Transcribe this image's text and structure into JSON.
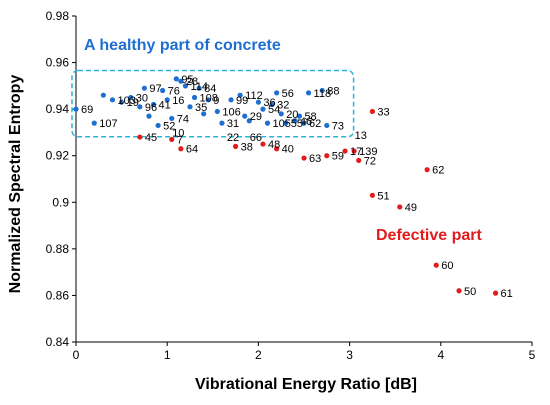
{
  "chart_data": {
    "type": "scatter",
    "xlabel": "Vibrational Energy Ratio [dB]",
    "ylabel": "Normalized Spectral Entropy",
    "xlim": [
      0,
      5
    ],
    "ylim": [
      0.84,
      0.98
    ],
    "xticks": [
      "0",
      "1",
      "2",
      "3",
      "4",
      "5"
    ],
    "yticks": [
      "0.84",
      "0.86",
      "0.88",
      "0.9",
      "0.92",
      "0.94",
      "0.96",
      "0.98"
    ],
    "grid": false,
    "annotations": {
      "healthy": "A healthy part of concrete",
      "defective": "Defective part"
    },
    "colors": {
      "healthy": "#1f6fd1",
      "defective": "#e31b1b",
      "box": "#2cb5d9"
    },
    "healthy_region": {
      "x": [
        0.0,
        3.0
      ],
      "y": [
        0.929,
        0.954
      ]
    },
    "series": [
      {
        "color": "#1f6fd1",
        "points": [
          {
            "x": 0.0,
            "y": 0.94,
            "label": "69"
          },
          {
            "x": 0.2,
            "y": 0.934,
            "label": "107"
          },
          {
            "x": 0.3,
            "y": 0.946,
            "label": ""
          },
          {
            "x": 0.4,
            "y": 0.944,
            "label": "103"
          },
          {
            "x": 0.5,
            "y": 0.943,
            "label": "19"
          },
          {
            "x": 0.6,
            "y": 0.945,
            "label": "30"
          },
          {
            "x": 0.7,
            "y": 0.941,
            "label": "96"
          },
          {
            "x": 0.75,
            "y": 0.949,
            "label": "97"
          },
          {
            "x": 0.8,
            "y": 0.937,
            "label": ""
          },
          {
            "x": 0.85,
            "y": 0.942,
            "label": "41"
          },
          {
            "x": 0.9,
            "y": 0.933,
            "label": "52"
          },
          {
            "x": 0.95,
            "y": 0.948,
            "label": "76"
          },
          {
            "x": 1.0,
            "y": 0.944,
            "label": "16"
          },
          {
            "x": 1.05,
            "y": 0.936,
            "label": "74"
          },
          {
            "x": 1.1,
            "y": 0.953,
            "label": "95"
          },
          {
            "x": 1.15,
            "y": 0.952,
            "label": "28"
          },
          {
            "x": 1.2,
            "y": 0.95,
            "label": "114"
          },
          {
            "x": 1.25,
            "y": 0.941,
            "label": "35"
          },
          {
            "x": 1.3,
            "y": 0.945,
            "label": "108"
          },
          {
            "x": 1.35,
            "y": 0.949,
            "label": "84"
          },
          {
            "x": 1.4,
            "y": 0.938,
            "label": ""
          },
          {
            "x": 1.45,
            "y": 0.944,
            "label": "9"
          },
          {
            "x": 1.55,
            "y": 0.939,
            "label": "106"
          },
          {
            "x": 1.6,
            "y": 0.934,
            "label": "31"
          },
          {
            "x": 1.7,
            "y": 0.944,
            "label": "99"
          },
          {
            "x": 1.8,
            "y": 0.946,
            "label": "112"
          },
          {
            "x": 1.85,
            "y": 0.937,
            "label": "29"
          },
          {
            "x": 1.9,
            "y": 0.935,
            "label": ""
          },
          {
            "x": 2.0,
            "y": 0.943,
            "label": "36"
          },
          {
            "x": 2.05,
            "y": 0.94,
            "label": "54"
          },
          {
            "x": 2.1,
            "y": 0.934,
            "label": "105"
          },
          {
            "x": 2.15,
            "y": 0.942,
            "label": "32"
          },
          {
            "x": 2.2,
            "y": 0.947,
            "label": "56"
          },
          {
            "x": 2.25,
            "y": 0.938,
            "label": "20"
          },
          {
            "x": 2.3,
            "y": 0.934,
            "label": "55"
          },
          {
            "x": 2.4,
            "y": 0.935,
            "label": "46"
          },
          {
            "x": 2.45,
            "y": 0.937,
            "label": "58"
          },
          {
            "x": 2.5,
            "y": 0.934,
            "label": "62"
          },
          {
            "x": 2.55,
            "y": 0.947,
            "label": "118"
          },
          {
            "x": 2.7,
            "y": 0.948,
            "label": "88"
          },
          {
            "x": 2.75,
            "y": 0.933,
            "label": "73"
          }
        ]
      },
      {
        "color": "#e31b1b",
        "points": [
          {
            "x": 0.7,
            "y": 0.928,
            "label": "45"
          },
          {
            "x": 1.05,
            "y": 0.927,
            "label": "7"
          },
          {
            "x": 1.15,
            "y": 0.923,
            "label": "64"
          },
          {
            "x": 1.75,
            "y": 0.924,
            "label": "38"
          },
          {
            "x": 2.05,
            "y": 0.925,
            "label": "48"
          },
          {
            "x": 2.2,
            "y": 0.923,
            "label": "40"
          },
          {
            "x": 2.5,
            "y": 0.919,
            "label": "63"
          },
          {
            "x": 2.75,
            "y": 0.92,
            "label": "59"
          },
          {
            "x": 2.95,
            "y": 0.922,
            "label": "17"
          },
          {
            "x": 3.05,
            "y": 0.922,
            "label": "139"
          },
          {
            "x": 3.1,
            "y": 0.918,
            "label": "72"
          },
          {
            "x": 3.25,
            "y": 0.939,
            "label": "33"
          },
          {
            "x": 3.25,
            "y": 0.903,
            "label": "51"
          },
          {
            "x": 3.55,
            "y": 0.898,
            "label": "49"
          },
          {
            "x": 3.85,
            "y": 0.914,
            "label": "62"
          },
          {
            "x": 3.95,
            "y": 0.873,
            "label": "60"
          },
          {
            "x": 4.2,
            "y": 0.862,
            "label": "50"
          },
          {
            "x": 4.6,
            "y": 0.861,
            "label": "61"
          }
        ]
      }
    ],
    "extra_labels": [
      {
        "x": 1.0,
        "y": 0.93,
        "label": "10"
      },
      {
        "x": 1.6,
        "y": 0.928,
        "label": "22"
      },
      {
        "x": 1.85,
        "y": 0.928,
        "label": "66"
      },
      {
        "x": 3.0,
        "y": 0.929,
        "label": "13"
      }
    ]
  }
}
